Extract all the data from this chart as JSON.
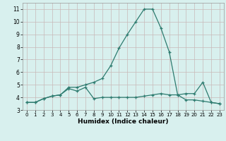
{
  "xlabel": "Humidex (Indice chaleur)",
  "x": [
    0,
    1,
    2,
    3,
    4,
    5,
    6,
    7,
    8,
    9,
    10,
    11,
    12,
    13,
    14,
    15,
    16,
    17,
    18,
    19,
    20,
    21,
    22,
    23
  ],
  "line1_y": [
    3.6,
    3.6,
    3.9,
    4.1,
    4.2,
    4.8,
    4.8,
    5.0,
    5.2,
    5.5,
    6.5,
    7.9,
    9.0,
    10.0,
    11.0,
    11.0,
    9.5,
    7.6,
    4.2,
    4.3,
    4.3,
    5.2,
    3.6,
    3.5
  ],
  "line2_y": [
    3.6,
    3.6,
    3.9,
    4.1,
    4.2,
    4.7,
    4.5,
    4.8,
    3.9,
    4.0,
    4.0,
    4.0,
    4.0,
    4.0,
    4.1,
    4.2,
    4.3,
    4.2,
    4.2,
    3.8,
    3.8,
    3.7,
    3.6,
    3.5
  ],
  "line_color": "#2d7b6f",
  "bg_color": "#d8f0ee",
  "grid_color": "#c8b8b8",
  "ylim": [
    3,
    11.5
  ],
  "xlim": [
    -0.5,
    23.5
  ],
  "yticks": [
    3,
    4,
    5,
    6,
    7,
    8,
    9,
    10,
    11
  ],
  "xticks": [
    0,
    1,
    2,
    3,
    4,
    5,
    6,
    7,
    8,
    9,
    10,
    11,
    12,
    13,
    14,
    15,
    16,
    17,
    18,
    19,
    20,
    21,
    22,
    23
  ]
}
